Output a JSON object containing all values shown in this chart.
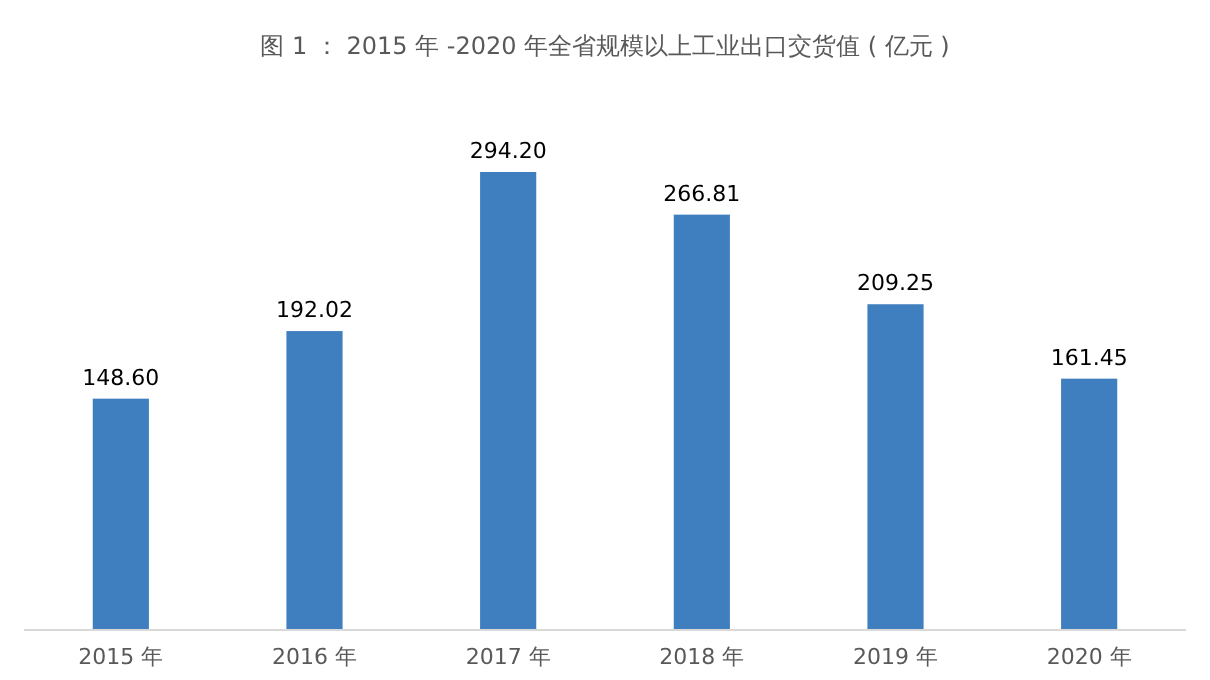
{
  "chart_data": {
    "type": "bar",
    "title": "图 1 ： 2015 年 -2020 年全省规模以上工业出口交货值 ( 亿元 )",
    "categories": [
      "2015 年",
      "2016 年",
      "2017 年",
      "2018 年",
      "2019 年",
      "2020 年"
    ],
    "values": [
      148.6,
      192.02,
      294.2,
      266.81,
      209.25,
      161.45
    ],
    "value_labels": [
      "148.60",
      "192.02",
      "294.20",
      "266.81",
      "209.25",
      "161.45"
    ],
    "color": "#3f7fbf",
    "tick_labels": "x",
    "grid": false
  }
}
